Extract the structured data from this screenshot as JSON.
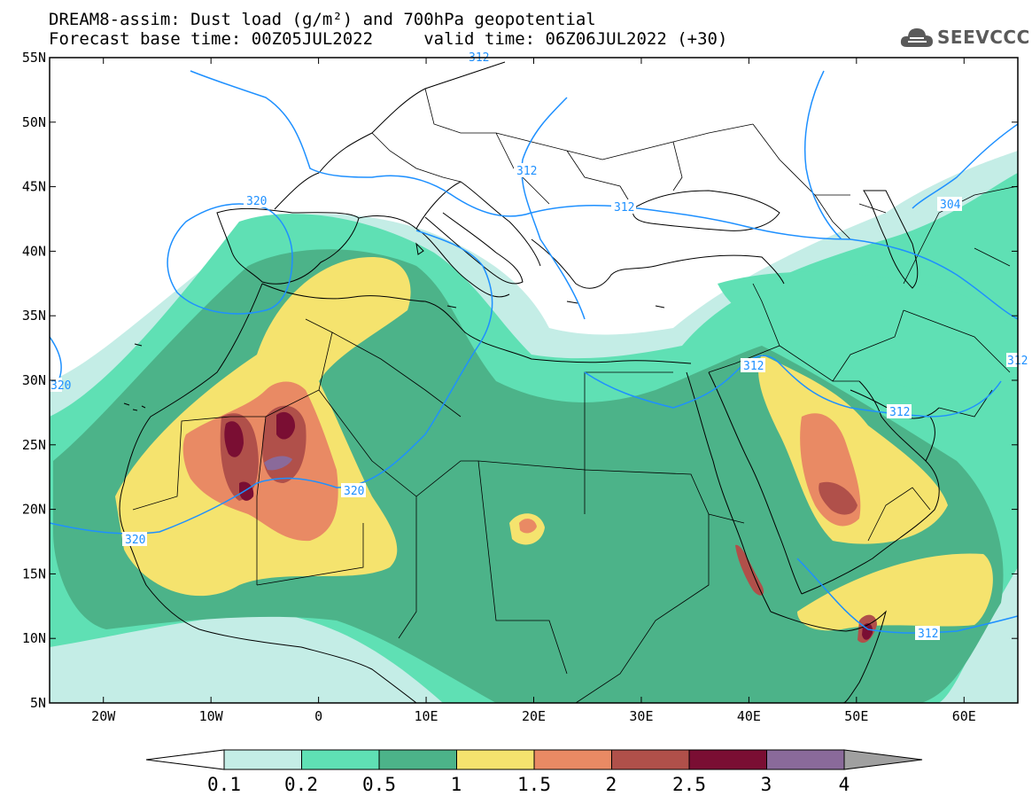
{
  "title": {
    "line1": "DREAM8-assim: Dust load (g/m²) and 700hPa geopotential",
    "line2": "Forecast base time: 00Z05JUL2022     valid time: 06Z06JUL2022 (+30)"
  },
  "logo": {
    "text": "SEEVCCC",
    "icon": "cloud-icon"
  },
  "map": {
    "lat_labels": [
      "55N",
      "50N",
      "45N",
      "40N",
      "35N",
      "30N",
      "25N",
      "20N",
      "15N",
      "10N",
      "5N"
    ],
    "lon_labels": [
      "20W",
      "10W",
      "0",
      "10E",
      "20E",
      "30E",
      "40E",
      "50E",
      "60E"
    ],
    "extent": {
      "lon_min": -25,
      "lon_max": 65,
      "lat_min": 5,
      "lat_max": 55
    },
    "contour_labels": [
      "312",
      "320",
      "312",
      "312",
      "320",
      "320",
      "312",
      "312",
      "304",
      "312",
      "312",
      "320"
    ],
    "colors": {
      "frame": "#000000",
      "coast": "#000000",
      "contour": "#1e90ff",
      "background": "#ffffff"
    }
  },
  "colorbar": {
    "labels": [
      "0.1",
      "0.2",
      "0.5",
      "1",
      "1.5",
      "2",
      "2.5",
      "3",
      "4"
    ],
    "colors": [
      "#c4ede6",
      "#5fe0b4",
      "#4cb389",
      "#f5e36e",
      "#e98a64",
      "#b0504a",
      "#7a0e33",
      "#8a6a9a"
    ],
    "low_color": "#ffffff",
    "high_color": "#a0a0a0"
  }
}
